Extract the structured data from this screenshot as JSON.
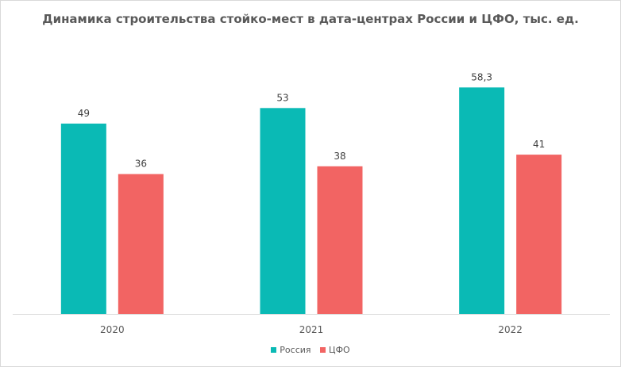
{
  "chart_data": {
    "type": "bar",
    "title": "Динамика строительства стойко-мест в дата-центрах России и ЦФО, тыс. ед.",
    "categories": [
      "2020",
      "2021",
      "2022"
    ],
    "series": [
      {
        "name": "Россия",
        "values": [
          49,
          53,
          58.3
        ],
        "labels": [
          "49",
          "53",
          "58,3"
        ],
        "color": "#0abab5"
      },
      {
        "name": "ЦФО",
        "values": [
          36,
          38,
          41
        ],
        "labels": [
          "36",
          "38",
          "41"
        ],
        "color": "#f26463"
      }
    ],
    "ylim": [
      0,
      60
    ],
    "grid": false,
    "legend_position": "bottom"
  }
}
